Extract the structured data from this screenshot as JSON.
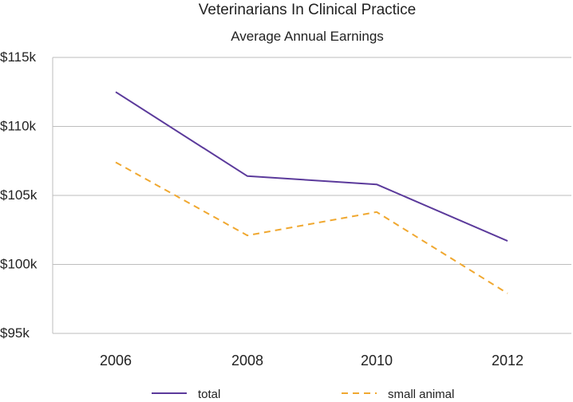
{
  "chart_data": {
    "type": "line",
    "title": "Veterinarians In Clinical Practice",
    "subtitle": "Average Annual Earnings",
    "xlabel": "",
    "ylabel": "",
    "categories": [
      "2006",
      "2008",
      "2010",
      "2012"
    ],
    "ylim": [
      95,
      115
    ],
    "yticks": [
      95,
      100,
      105,
      110,
      115
    ],
    "ytick_labels": [
      "$95k",
      "$100k",
      "$105k",
      "$110k",
      "$115k"
    ],
    "grid": true,
    "legend_position": "bottom",
    "series": [
      {
        "name": "total",
        "color": "#5b3a9b",
        "dash": "solid",
        "values": [
          112.5,
          106.4,
          105.8,
          101.7
        ]
      },
      {
        "name": "small animal",
        "color": "#f0a830",
        "dash": "dashed",
        "values": [
          107.4,
          102.1,
          103.8,
          97.9
        ]
      }
    ]
  }
}
